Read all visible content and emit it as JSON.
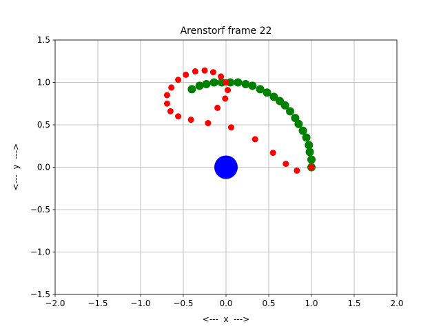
{
  "chart_data": {
    "type": "scatter",
    "title": "Arenstorf frame 22",
    "x_label": "<---  x  --->",
    "y_label": "<---  y  --->",
    "xlim": [
      -2,
      2
    ],
    "ylim": [
      -1.5,
      1.5
    ],
    "xticks": [
      {
        "value": -2,
        "label": "−2.0"
      },
      {
        "value": -1.5,
        "label": "−1.5"
      },
      {
        "value": -1,
        "label": "−1.0"
      },
      {
        "value": -0.5,
        "label": "−0.5"
      },
      {
        "value": 0,
        "label": "0.0"
      },
      {
        "value": 0.5,
        "label": "0.5"
      },
      {
        "value": 1,
        "label": "1.0"
      },
      {
        "value": 1.5,
        "label": "1.5"
      },
      {
        "value": 2,
        "label": "2.0"
      }
    ],
    "yticks": [
      {
        "value": -1.5,
        "label": "−1.5"
      },
      {
        "value": -1,
        "label": "−1.0"
      },
      {
        "value": -0.5,
        "label": "−0.5"
      },
      {
        "value": 0,
        "label": "0.0"
      },
      {
        "value": 0.5,
        "label": "0.5"
      },
      {
        "value": 1,
        "label": "1.0"
      },
      {
        "value": 1.5,
        "label": "1.5"
      }
    ],
    "grid": true,
    "series": [
      {
        "color": "#008000",
        "x": [
          1.0,
          1.0,
          0.98,
          0.97,
          0.94,
          0.9,
          0.85,
          0.81,
          0.75,
          0.69,
          0.63,
          0.56,
          0.48,
          0.4,
          0.31,
          0.23,
          0.14,
          0.05,
          -0.05,
          -0.14,
          -0.23,
          -0.31,
          -0.4
        ],
        "y": [
          0.0,
          0.09,
          0.18,
          0.26,
          0.35,
          0.43,
          0.51,
          0.58,
          0.66,
          0.73,
          0.78,
          0.83,
          0.88,
          0.92,
          0.96,
          0.98,
          1.0,
          1.0,
          1.0,
          1.0,
          0.98,
          0.96,
          0.92
        ]
      },
      {
        "color": "#ff0000",
        "x": [
          1.0,
          0.83,
          0.7,
          0.55,
          0.34,
          0.06,
          -0.21,
          -0.41,
          -0.56,
          -0.65,
          -0.69,
          -0.69,
          -0.64,
          -0.56,
          -0.47,
          -0.36,
          -0.25,
          -0.15,
          -0.06,
          0.0,
          0.02,
          -0.01,
          -0.1
        ],
        "y": [
          0.0,
          -0.04,
          0.04,
          0.17,
          0.33,
          0.47,
          0.52,
          0.56,
          0.6,
          0.66,
          0.75,
          0.85,
          0.94,
          1.03,
          1.09,
          1.13,
          1.14,
          1.12,
          1.07,
          1.0,
          0.91,
          0.81,
          0.7
        ]
      },
      {
        "color": "#0000ff",
        "x": [
          0
        ],
        "y": [
          0
        ]
      }
    ]
  }
}
